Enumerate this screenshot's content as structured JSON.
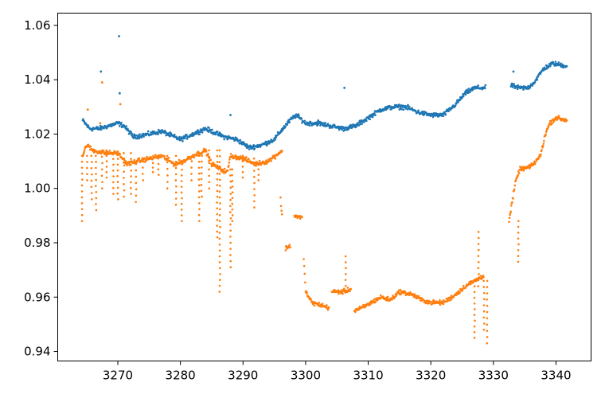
{
  "chart_data": {
    "type": "scatter",
    "title": "",
    "xlabel": "",
    "ylabel": "",
    "xlim": [
      3260.4,
      3345.6
    ],
    "ylim": [
      0.9365,
      1.0645
    ],
    "grid": false,
    "x_ticks": [
      3270,
      3280,
      3290,
      3300,
      3310,
      3320,
      3330,
      3340
    ],
    "y_ticks": [
      0.94,
      0.96,
      0.98,
      1.0,
      1.02,
      1.04,
      1.06
    ],
    "x_tick_labels": [
      "3270",
      "3280",
      "3290",
      "3300",
      "3310",
      "3320",
      "3330",
      "3340"
    ],
    "y_tick_labels": [
      "0.94",
      "0.96",
      "0.98",
      "1.00",
      "1.02",
      "1.04",
      "1.06"
    ],
    "series": [
      {
        "color": "#1f77b4",
        "trend": [
          [
            3264.4,
            1.025
          ],
          [
            3265.5,
            1.022
          ],
          [
            3267.0,
            1.022
          ],
          [
            3268.5,
            1.023
          ],
          [
            3270.0,
            1.024
          ],
          [
            3271.0,
            1.023
          ],
          [
            3272.5,
            1.019
          ],
          [
            3275.0,
            1.02
          ],
          [
            3277.0,
            1.021
          ],
          [
            3280.0,
            1.018
          ],
          [
            3282.0,
            1.02
          ],
          [
            3284.0,
            1.022
          ],
          [
            3285.0,
            1.021
          ],
          [
            3287.0,
            1.019
          ],
          [
            3289.0,
            1.018
          ],
          [
            3291.0,
            1.015
          ],
          [
            3293.0,
            1.016
          ],
          [
            3295.0,
            1.018
          ],
          [
            3296.0,
            1.021
          ],
          [
            3297.5,
            1.025
          ],
          [
            3298.5,
            1.027
          ],
          [
            3300.0,
            1.024
          ],
          [
            3302.0,
            1.024
          ],
          [
            3304.0,
            1.023
          ],
          [
            3306.0,
            1.022
          ],
          [
            3308.0,
            1.023
          ],
          [
            3310.0,
            1.026
          ],
          [
            3312.0,
            1.029
          ],
          [
            3314.0,
            1.03
          ],
          [
            3316.0,
            1.03
          ],
          [
            3318.0,
            1.028
          ],
          [
            3320.0,
            1.027
          ],
          [
            3322.0,
            1.027
          ],
          [
            3324.0,
            1.031
          ],
          [
            3325.5,
            1.035
          ],
          [
            3327.0,
            1.037
          ],
          [
            3328.8,
            1.037
          ],
          null,
          [
            3332.8,
            1.038
          ],
          [
            3334.0,
            1.037
          ],
          [
            3335.5,
            1.037
          ],
          [
            3336.5,
            1.039
          ],
          [
            3338.0,
            1.044
          ],
          [
            3339.5,
            1.046
          ],
          [
            3341.8,
            1.045
          ]
        ],
        "outliers": [
          [
            3270.2,
            1.056
          ],
          [
            3267.3,
            1.043
          ],
          [
            3270.3,
            1.035
          ],
          [
            3288.0,
            1.027
          ],
          [
            3306.2,
            1.037
          ],
          [
            3333.2,
            1.043
          ],
          [
            3302.0,
            1.025
          ]
        ]
      },
      {
        "color": "#ff7f0e",
        "trend": [
          [
            3264.4,
            1.012
          ],
          [
            3265.0,
            1.016
          ],
          [
            3266.0,
            1.014
          ],
          [
            3268.0,
            1.013
          ],
          [
            3270.0,
            1.013
          ],
          [
            3271.5,
            1.009
          ],
          [
            3273.0,
            1.01
          ],
          [
            3275.0,
            1.011
          ],
          [
            3277.0,
            1.012
          ],
          [
            3279.0,
            1.009
          ],
          [
            3280.5,
            1.01
          ],
          [
            3282.0,
            1.012
          ],
          [
            3284.0,
            1.014
          ],
          [
            3285.0,
            1.009
          ],
          [
            3286.5,
            1.007
          ],
          [
            3287.5,
            1.006
          ],
          [
            3288.0,
            1.012
          ],
          [
            3290.0,
            1.011
          ],
          [
            3292.0,
            1.009
          ],
          [
            3294.0,
            1.01
          ],
          [
            3296.3,
            1.014
          ],
          null,
          [
            3296.0,
            0.996
          ],
          [
            3296.3,
            0.988
          ],
          null,
          [
            3296.8,
            0.978
          ],
          [
            3297.6,
            0.979
          ],
          null,
          [
            3298.2,
            0.99
          ],
          [
            3299.5,
            0.989
          ],
          null,
          [
            3299.7,
            0.975
          ],
          [
            3300.0,
            0.962
          ],
          [
            3301.0,
            0.958
          ],
          [
            3302.5,
            0.957
          ],
          [
            3303.8,
            0.956
          ],
          null,
          [
            3304.2,
            0.962
          ],
          [
            3306.0,
            0.962
          ],
          [
            3307.3,
            0.963
          ],
          null,
          [
            3307.8,
            0.955
          ],
          [
            3309.0,
            0.956
          ],
          [
            3310.5,
            0.958
          ],
          [
            3312.0,
            0.96
          ],
          [
            3313.5,
            0.959
          ],
          [
            3315.0,
            0.962
          ],
          [
            3317.0,
            0.961
          ],
          [
            3318.5,
            0.959
          ],
          [
            3320.0,
            0.958
          ],
          [
            3322.0,
            0.958
          ],
          [
            3324.0,
            0.961
          ],
          [
            3325.5,
            0.964
          ],
          [
            3327.0,
            0.966
          ],
          [
            3328.5,
            0.968
          ],
          null,
          [
            3332.5,
            0.988
          ],
          [
            3333.0,
            0.995
          ],
          [
            3333.5,
            1.002
          ],
          [
            3334.2,
            1.007
          ],
          [
            3336.0,
            1.008
          ],
          [
            3337.5,
            1.012
          ],
          [
            3338.3,
            1.02
          ],
          [
            3339.0,
            1.024
          ],
          [
            3340.0,
            1.026
          ],
          [
            3341.8,
            1.025
          ]
        ],
        "dips": [
          [
            3264.3,
            0.988
          ],
          [
            3265.1,
            1.003
          ],
          [
            3265.8,
            0.996
          ],
          [
            3266.5,
            0.992
          ],
          [
            3267.5,
            1.0
          ],
          [
            3268.2,
            1.004
          ],
          [
            3269.3,
            0.998
          ],
          [
            3270.0,
            0.996
          ],
          [
            3271.0,
            0.997
          ],
          [
            3272.1,
            0.998
          ],
          [
            3272.9,
            0.995
          ],
          [
            3274.0,
            1.003
          ],
          [
            3275.6,
            1.006
          ],
          [
            3276.5,
            1.005
          ],
          [
            3277.9,
            1.0
          ],
          [
            3279.3,
            0.994
          ],
          [
            3280.2,
            0.988
          ],
          [
            3281.8,
            1.003
          ],
          [
            3283.0,
            0.988
          ],
          [
            3283.4,
            0.997
          ],
          [
            3284.6,
            1.0
          ],
          [
            3285.9,
            0.982
          ],
          [
            3286.3,
            0.962
          ],
          [
            3288.0,
            0.971
          ],
          [
            3288.3,
            0.988
          ],
          [
            3290.0,
            1.004
          ],
          [
            3291.8,
            0.993
          ],
          [
            3292.5,
            1.003
          ],
          [
            3327.0,
            0.945
          ],
          [
            3328.5,
            0.948
          ],
          [
            3329.0,
            0.943
          ],
          [
            3334.0,
            0.973
          ],
          [
            3327.6,
            0.984
          ],
          [
            3306.4,
            0.975
          ]
        ],
        "outliers": [
          [
            3267.5,
            1.039
          ],
          [
            3270.4,
            1.031
          ],
          [
            3265.2,
            1.029
          ],
          [
            3267.2,
            1.024
          ]
        ]
      }
    ]
  }
}
